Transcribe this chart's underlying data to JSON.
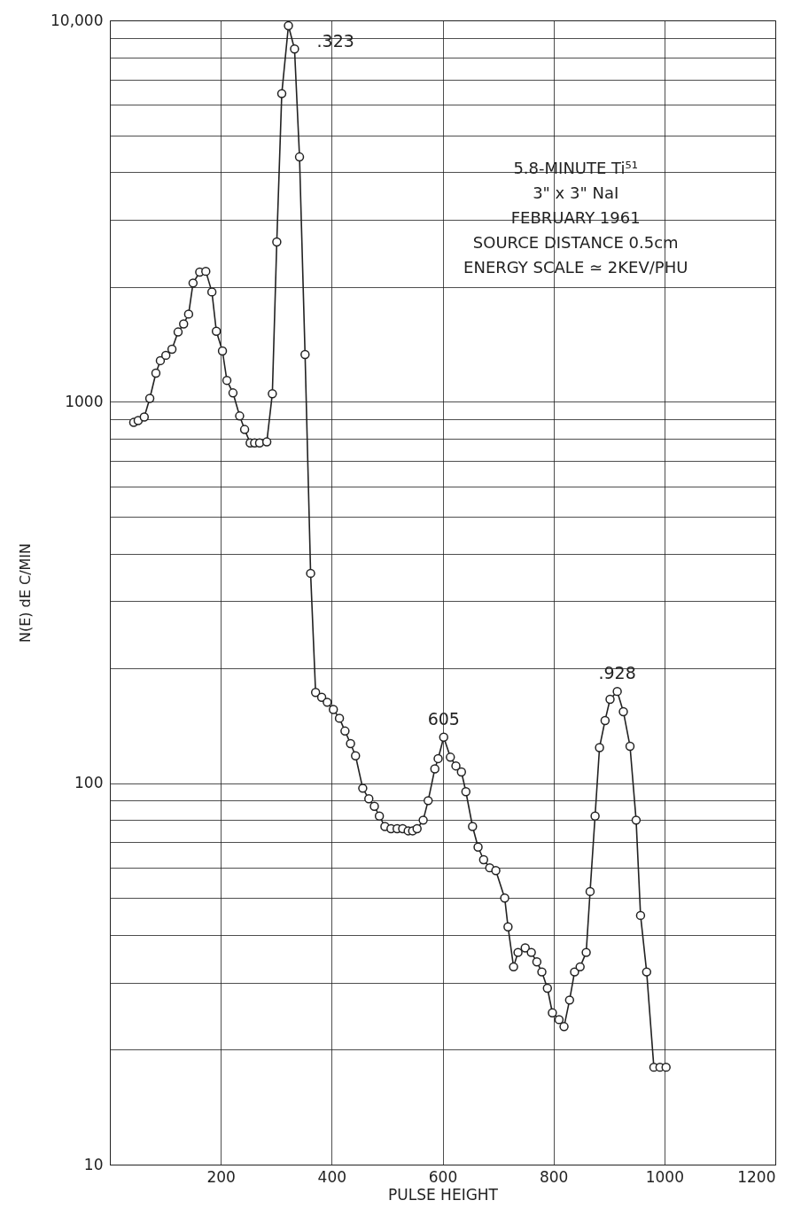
{
  "chart_data": {
    "type": "line",
    "xlabel": "PULSE HEIGHT",
    "ylabel": "N(E) dE C/MIN",
    "x": [
      43,
      51,
      62,
      72,
      83,
      91,
      101,
      112,
      123,
      133,
      142,
      150,
      162,
      173,
      184,
      192,
      203,
      211,
      222,
      234,
      243,
      253,
      261,
      270,
      283,
      293,
      301,
      310,
      322,
      333,
      342,
      352,
      362,
      371,
      382,
      392,
      403,
      414,
      424,
      434,
      443,
      456,
      467,
      477,
      486,
      496,
      507,
      518,
      528,
      538,
      546,
      554,
      565,
      574,
      586,
      592,
      602,
      614,
      624,
      634,
      642,
      654,
      664,
      674,
      685,
      696,
      712,
      718,
      728,
      736,
      749,
      760,
      770,
      779,
      789,
      798,
      810,
      819,
      829,
      838,
      848,
      859,
      866,
      875,
      883,
      893,
      902,
      915,
      926,
      938,
      949,
      957,
      968,
      981,
      992,
      1003
    ],
    "series": [
      {
        "color": "#222222",
        "values": [
          883,
          893,
          912,
          1021,
          1189,
          1282,
          1324,
          1374,
          1524,
          1600,
          1698,
          2048,
          2188,
          2198,
          1941,
          1531,
          1359,
          1138,
          1055,
          918,
          846,
          780,
          780,
          780,
          785,
          1050,
          2624,
          6427,
          9683,
          8414,
          4385,
          1330,
          355,
          173,
          168,
          163,
          156,
          148,
          137,
          127,
          118,
          97,
          91,
          87,
          82,
          77,
          76,
          76,
          76,
          75,
          75,
          76,
          80,
          90,
          109,
          116,
          132,
          117,
          111,
          107,
          95,
          77,
          68,
          63,
          60,
          59,
          50,
          42,
          33,
          36,
          37,
          36,
          34,
          32,
          29,
          25,
          24,
          23,
          27,
          32,
          33,
          36,
          52,
          82,
          124,
          146,
          166,
          174,
          154,
          125,
          80,
          45,
          32,
          18,
          18,
          18
        ]
      }
    ],
    "xlim": [
      0,
      1200
    ],
    "xticks": [
      200,
      400,
      600,
      800,
      1000,
      1200
    ],
    "ylim": [
      10,
      10000
    ],
    "log": true,
    "yticks": [
      10,
      {
        "value": 20,
        "label": null
      },
      {
        "value": 30,
        "label": null
      },
      {
        "value": 40,
        "label": null
      },
      {
        "value": 50,
        "label": null
      },
      {
        "value": 60,
        "label": null
      },
      {
        "value": 70,
        "label": null
      },
      {
        "value": 80,
        "label": null
      },
      {
        "value": 90,
        "label": null
      },
      100,
      {
        "value": 200,
        "label": null
      },
      {
        "value": 300,
        "label": null
      },
      {
        "value": 400,
        "label": null
      },
      {
        "value": 500,
        "label": null
      },
      {
        "value": 600,
        "label": null
      },
      {
        "value": 700,
        "label": null
      },
      {
        "value": 800,
        "label": null
      },
      {
        "value": 900,
        "label": null
      },
      1000,
      {
        "value": 2000,
        "label": null
      },
      {
        "value": 3000,
        "label": null
      },
      {
        "value": 4000,
        "label": null
      },
      {
        "value": 5000,
        "label": null
      },
      {
        "value": 6000,
        "label": null
      },
      {
        "value": 7000,
        "label": null
      },
      {
        "value": 8000,
        "label": null
      },
      {
        "value": 9000,
        "label": null
      },
      {
        "value": 10000,
        "label": "10,000"
      }
    ],
    "grid": true,
    "marker": "circle",
    "line_style": "solid",
    "annotations": [
      {
        "text": ".323",
        "x": 322,
        "y": 9683
      },
      {
        "text": "605",
        "x": 602,
        "y": 132
      },
      {
        "text": ".928",
        "x": 915,
        "y": 174
      },
      "5.8-MINUTE Ti⁵¹",
      "3\" x 3\" NaI",
      "FEBRUARY 1961",
      "SOURCE DISTANCE 0.5cm",
      "ENERGY SCALE ≃ 2KEV/PHU"
    ]
  }
}
